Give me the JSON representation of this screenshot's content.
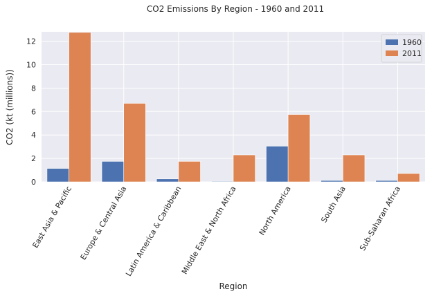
{
  "chart_data": {
    "type": "bar",
    "title": "CO2 Emissions By Region - 1960 and 2011",
    "xlabel": "Region",
    "ylabel": "CO2 (kt (millions))",
    "categories": [
      "East Asia & Pacific",
      "Europe & Central Asia",
      "Latin America & Caribbean",
      "Middle East & North Africa",
      "North America",
      "South Asia",
      "Sub-Saharan Africa"
    ],
    "series": [
      {
        "name": "1960",
        "color": "#4c72b0",
        "values": [
          1.15,
          1.75,
          0.25,
          0.05,
          3.05,
          0.12,
          0.12
        ]
      },
      {
        "name": "2011",
        "color": "#dd8452",
        "values": [
          12.75,
          6.7,
          1.75,
          2.3,
          5.75,
          2.3,
          0.72
        ]
      }
    ],
    "yticks": [
      0,
      2,
      4,
      6,
      8,
      10,
      12
    ],
    "ylim": [
      0,
      12.8
    ],
    "grid": true,
    "legend_position": "top-right",
    "plot_background": "#eaeaf2",
    "grid_color": "#ffffff"
  }
}
